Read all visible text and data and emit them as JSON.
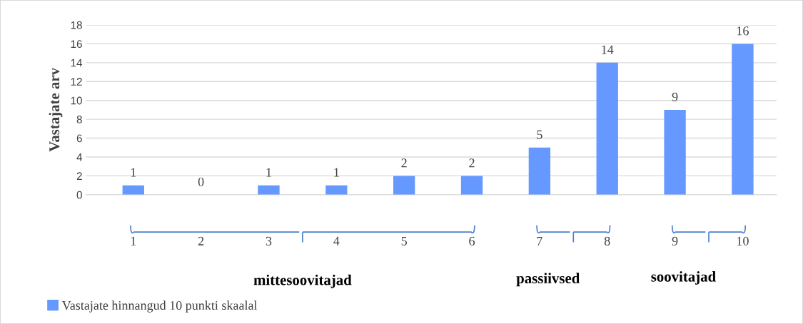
{
  "chart_data": {
    "type": "bar",
    "categories": [
      "1",
      "2",
      "3",
      "4",
      "5",
      "6",
      "7",
      "8",
      "9",
      "10"
    ],
    "series": [
      {
        "name": "Vastajate hinnangud 10 punkti skaalal",
        "color": "#6699ff",
        "values": [
          1,
          0,
          1,
          1,
          2,
          2,
          5,
          14,
          9,
          16
        ]
      }
    ],
    "ylabel": "Vastajate arv",
    "ylim": [
      0,
      18
    ],
    "yticks": [
      0,
      2,
      4,
      6,
      8,
      10,
      12,
      14,
      16,
      18
    ],
    "grid": "y",
    "data_labels": true,
    "legend": "bottom left",
    "annotations": [
      "mittesoovitajad",
      "passiivsed",
      "soovitajad"
    ]
  }
}
